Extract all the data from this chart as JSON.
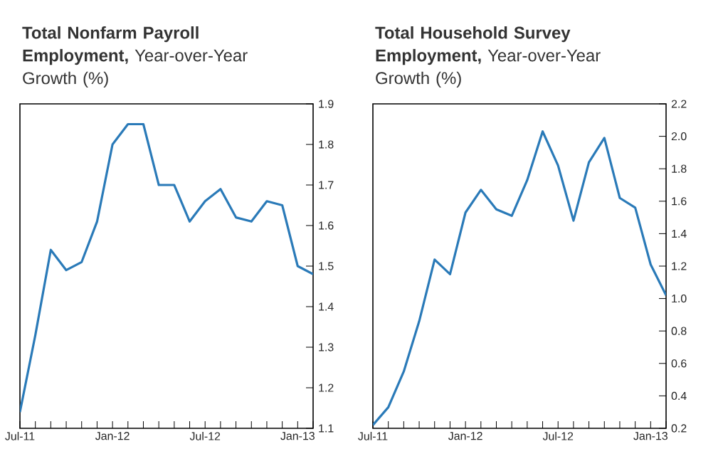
{
  "chart_data": [
    {
      "type": "line",
      "title": "**Total Nonfarm Payroll Employment,** Year-over-Year Growth (%)",
      "x": [
        "2011-07",
        "2011-08",
        "2011-09",
        "2011-10",
        "2011-11",
        "2011-12",
        "2012-01",
        "2012-02",
        "2012-03",
        "2012-04",
        "2012-05",
        "2012-06",
        "2012-07",
        "2012-08",
        "2012-09",
        "2012-10",
        "2012-11",
        "2012-12",
        "2013-01",
        "2013-02"
      ],
      "series": [
        {
          "color": "#2a7ab8",
          "values": [
            1.14,
            1.33,
            1.54,
            1.49,
            1.51,
            1.61,
            1.8,
            1.85,
            1.85,
            1.7,
            1.7,
            1.61,
            1.66,
            1.69,
            1.62,
            1.61,
            1.66,
            1.65,
            1.5,
            1.48
          ]
        }
      ],
      "xlim": [
        "2011-07",
        "2013-02"
      ],
      "xticks": [
        {
          "value": "2011-07",
          "label": "Jul-11"
        },
        {
          "value": "2011-08",
          "label": null
        },
        {
          "value": "2011-09",
          "label": null
        },
        {
          "value": "2011-10",
          "label": null
        },
        {
          "value": "2011-11",
          "label": null
        },
        {
          "value": "2011-12",
          "label": null
        },
        {
          "value": "2012-01",
          "label": "Jan-12"
        },
        {
          "value": "2012-02",
          "label": null
        },
        {
          "value": "2012-03",
          "label": null
        },
        {
          "value": "2012-04",
          "label": null
        },
        {
          "value": "2012-05",
          "label": null
        },
        {
          "value": "2012-06",
          "label": null
        },
        {
          "value": "2012-07",
          "label": "Jul-12"
        },
        {
          "value": "2012-08",
          "label": null
        },
        {
          "value": "2012-09",
          "label": null
        },
        {
          "value": "2012-10",
          "label": null
        },
        {
          "value": "2012-11",
          "label": null
        },
        {
          "value": "2012-12",
          "label": null
        },
        {
          "value": "2013-01",
          "label": "Jan-13"
        },
        {
          "value": "2013-02",
          "label": null
        }
      ],
      "ylim": [
        1.1,
        1.9
      ],
      "yticks": [
        {
          "value": 1.1,
          "label": "1.1"
        },
        {
          "value": 1.2,
          "label": "1.2"
        },
        {
          "value": 1.3,
          "label": "1.3"
        },
        {
          "value": 1.4,
          "label": "1.4"
        },
        {
          "value": 1.5,
          "label": "1.5"
        },
        {
          "value": 1.6,
          "label": "1.6"
        },
        {
          "value": 1.7,
          "label": "1.7"
        },
        {
          "value": 1.8,
          "label": "1.8"
        },
        {
          "value": 1.9,
          "label": "1.9"
        }
      ],
      "marker": "none",
      "line_style": "solid"
    },
    {
      "type": "line",
      "title": "**Total Household Survey Employment,** Year-over-Year Growth (%)",
      "x": [
        "2011-07",
        "2011-08",
        "2011-09",
        "2011-10",
        "2011-11",
        "2011-12",
        "2012-01",
        "2012-02",
        "2012-03",
        "2012-04",
        "2012-05",
        "2012-06",
        "2012-07",
        "2012-08",
        "2012-09",
        "2012-10",
        "2012-11",
        "2012-12",
        "2013-01",
        "2013-02"
      ],
      "series": [
        {
          "color": "#2a7ab8",
          "values": [
            0.22,
            0.33,
            0.55,
            0.86,
            1.24,
            1.15,
            1.53,
            1.67,
            1.55,
            1.51,
            1.73,
            2.03,
            1.82,
            1.48,
            1.84,
            1.99,
            1.62,
            1.56,
            1.21,
            1.02
          ]
        }
      ],
      "xlim": [
        "2011-07",
        "2013-02"
      ],
      "xticks": [
        {
          "value": "2011-07",
          "label": "Jul-11"
        },
        {
          "value": "2011-08",
          "label": null
        },
        {
          "value": "2011-09",
          "label": null
        },
        {
          "value": "2011-10",
          "label": null
        },
        {
          "value": "2011-11",
          "label": null
        },
        {
          "value": "2011-12",
          "label": null
        },
        {
          "value": "2012-01",
          "label": "Jan-12"
        },
        {
          "value": "2012-02",
          "label": null
        },
        {
          "value": "2012-03",
          "label": null
        },
        {
          "value": "2012-04",
          "label": null
        },
        {
          "value": "2012-05",
          "label": null
        },
        {
          "value": "2012-06",
          "label": null
        },
        {
          "value": "2012-07",
          "label": "Jul-12"
        },
        {
          "value": "2012-08",
          "label": null
        },
        {
          "value": "2012-09",
          "label": null
        },
        {
          "value": "2012-10",
          "label": null
        },
        {
          "value": "2012-11",
          "label": null
        },
        {
          "value": "2012-12",
          "label": null
        },
        {
          "value": "2013-01",
          "label": "Jan-13"
        },
        {
          "value": "2013-02",
          "label": null
        }
      ],
      "ylim": [
        0.2,
        2.2
      ],
      "yticks": [
        {
          "value": 0.2,
          "label": "0.2"
        },
        {
          "value": 0.4,
          "label": "0.4"
        },
        {
          "value": 0.6,
          "label": "0.6"
        },
        {
          "value": 0.8,
          "label": "0.8"
        },
        {
          "value": 1.0,
          "label": "1.0"
        },
        {
          "value": 1.2,
          "label": "1.2"
        },
        {
          "value": 1.4,
          "label": "1.4"
        },
        {
          "value": 1.6,
          "label": "1.6"
        },
        {
          "value": 1.8,
          "label": "1.8"
        },
        {
          "value": 2.0,
          "label": "2.0"
        },
        {
          "value": 2.2,
          "label": "2.2"
        }
      ],
      "marker": "none",
      "line_style": "solid"
    }
  ]
}
